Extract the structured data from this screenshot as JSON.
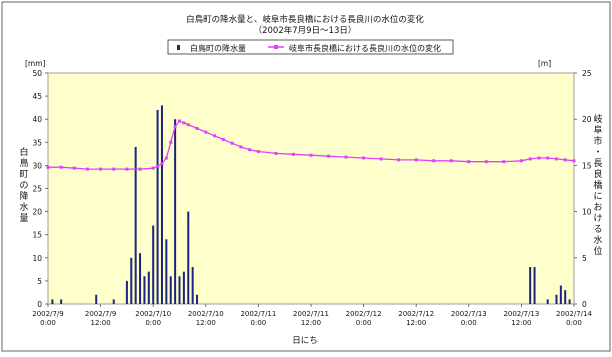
{
  "chart_data": {
    "type": "bar+line",
    "title_line1": "白鳥町の降水量と、岐阜市長良橋における長良川の水位の変化",
    "title_line2": "（2002年7月9日～13日）",
    "left_unit": "[mm]",
    "right_unit": "[m]",
    "left_axis_title": "白鳥町の降水量",
    "right_axis_title": "岐阜市・長良橋における水位",
    "xlabel": "日にち",
    "legend": {
      "bar_label": "白鳥町の降水量",
      "line_label": "岐阜市長良橋における長良川の水位の変化"
    },
    "y_left": {
      "min": 0,
      "max": 50,
      "ticks": [
        0,
        5,
        10,
        15,
        20,
        25,
        30,
        35,
        40,
        45,
        50
      ]
    },
    "y_right": {
      "min": 0,
      "max": 25,
      "ticks": [
        0,
        5,
        10,
        15,
        20,
        25
      ]
    },
    "x_ticks": [
      {
        "t": 0,
        "line1": "2002/7/9",
        "line2": "0:00"
      },
      {
        "t": 12,
        "line1": "2002/7/9",
        "line2": "12:00"
      },
      {
        "t": 24,
        "line1": "2002/7/10",
        "line2": "0:00"
      },
      {
        "t": 36,
        "line1": "2002/7/10",
        "line2": "12:00"
      },
      {
        "t": 48,
        "line1": "2002/7/11",
        "line2": "0:00"
      },
      {
        "t": 60,
        "line1": "2002/7/11",
        "line2": "12:00"
      },
      {
        "t": 72,
        "line1": "2002/7/12",
        "line2": "0:00"
      },
      {
        "t": 84,
        "line1": "2002/7/12",
        "line2": "12:00"
      },
      {
        "t": 96,
        "line1": "2002/7/13",
        "line2": "0:00"
      },
      {
        "t": 108,
        "line1": "2002/7/13",
        "line2": "12:00"
      },
      {
        "t": 120,
        "line1": "2002/7/14",
        "line2": "0:00"
      }
    ],
    "x_range": [
      0,
      120
    ],
    "rainfall": [
      [
        1,
        1
      ],
      [
        3,
        1
      ],
      [
        11,
        2
      ],
      [
        15,
        1
      ],
      [
        18,
        5
      ],
      [
        19,
        10
      ],
      [
        20,
        34
      ],
      [
        21,
        11
      ],
      [
        22,
        6
      ],
      [
        23,
        7
      ],
      [
        24,
        17
      ],
      [
        25,
        42
      ],
      [
        26,
        43
      ],
      [
        27,
        14
      ],
      [
        28,
        6
      ],
      [
        29,
        40
      ],
      [
        30,
        6
      ],
      [
        31,
        7
      ],
      [
        32,
        20
      ],
      [
        33,
        8
      ],
      [
        34,
        2
      ],
      [
        110,
        8
      ],
      [
        111,
        8
      ],
      [
        114,
        1
      ],
      [
        116,
        2
      ],
      [
        117,
        4
      ],
      [
        118,
        3
      ],
      [
        119,
        1
      ]
    ],
    "water_level": [
      [
        0,
        14.8
      ],
      [
        3,
        14.8
      ],
      [
        6,
        14.7
      ],
      [
        9,
        14.6
      ],
      [
        12,
        14.6
      ],
      [
        15,
        14.6
      ],
      [
        18,
        14.6
      ],
      [
        21,
        14.6
      ],
      [
        24,
        14.7
      ],
      [
        25,
        14.9
      ],
      [
        26,
        15.2
      ],
      [
        27,
        15.8
      ],
      [
        28,
        17.5
      ],
      [
        29,
        19.2
      ],
      [
        30,
        19.8
      ],
      [
        31,
        19.6
      ],
      [
        32,
        19.4
      ],
      [
        34,
        19.0
      ],
      [
        36,
        18.6
      ],
      [
        38,
        18.2
      ],
      [
        40,
        17.8
      ],
      [
        42,
        17.4
      ],
      [
        44,
        17.0
      ],
      [
        46,
        16.7
      ],
      [
        48,
        16.5
      ],
      [
        52,
        16.3
      ],
      [
        56,
        16.2
      ],
      [
        60,
        16.1
      ],
      [
        64,
        16.0
      ],
      [
        68,
        15.9
      ],
      [
        72,
        15.8
      ],
      [
        76,
        15.7
      ],
      [
        80,
        15.6
      ],
      [
        84,
        15.6
      ],
      [
        88,
        15.5
      ],
      [
        92,
        15.5
      ],
      [
        96,
        15.4
      ],
      [
        100,
        15.4
      ],
      [
        104,
        15.4
      ],
      [
        108,
        15.5
      ],
      [
        110,
        15.7
      ],
      [
        112,
        15.8
      ],
      [
        114,
        15.8
      ],
      [
        116,
        15.7
      ],
      [
        118,
        15.6
      ],
      [
        120,
        15.5
      ]
    ],
    "colors": {
      "bar": "#1a237e",
      "line": "#e040fb",
      "plot_bg": "#ffffcc"
    },
    "grid": false,
    "legend_position": "top"
  }
}
